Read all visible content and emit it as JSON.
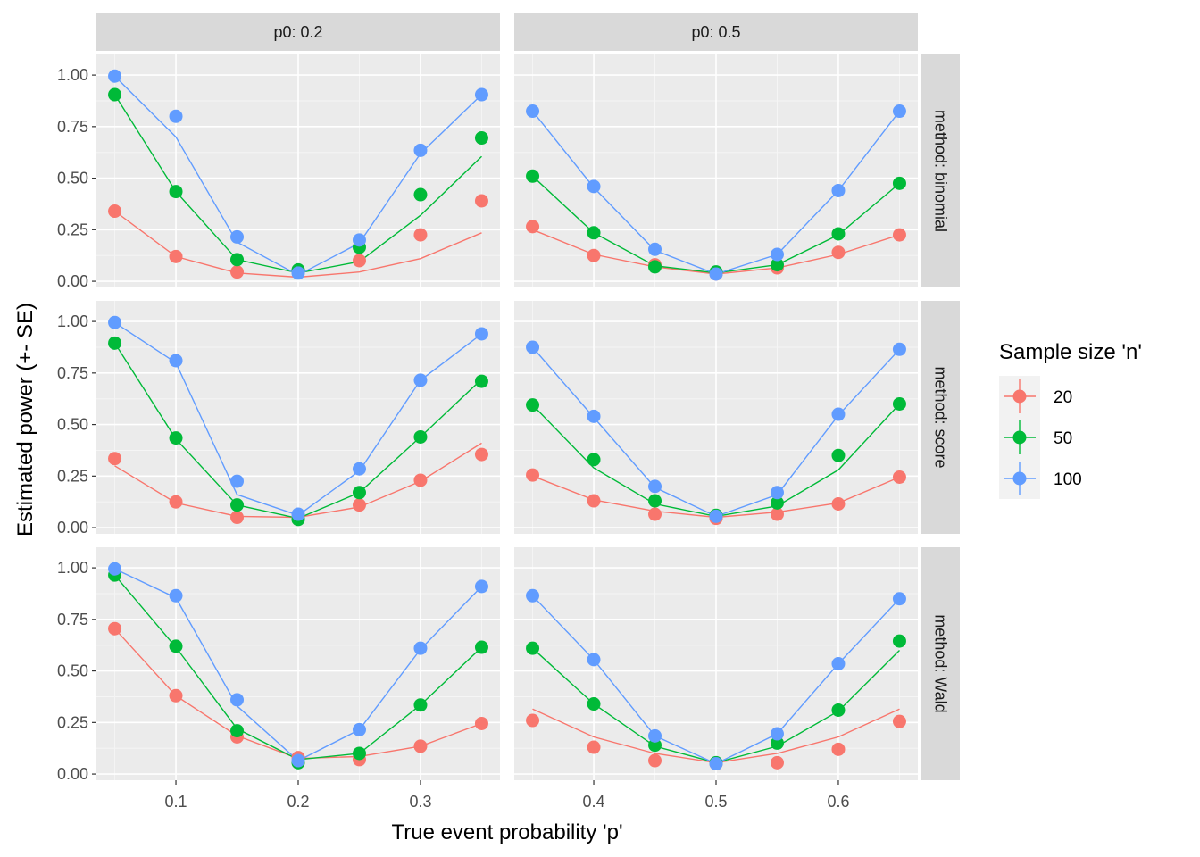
{
  "chart_data": {
    "type": "scatter",
    "xlabel": "True event probability 'p'",
    "ylabel": "Estimated power (+- SE)",
    "ylim": [
      -0.03,
      1.1
    ],
    "y_ticks": [
      0,
      0.25,
      0.5,
      0.75,
      1
    ],
    "y_tick_labels": [
      "0.00",
      "0.25",
      "0.50",
      "0.75",
      "1.00"
    ],
    "grid": true,
    "legend": {
      "title": "Sample size 'n'",
      "placement": "right",
      "entries": [
        {
          "label": "20",
          "color": "#F8766D"
        },
        {
          "label": "50",
          "color": "#00BA38"
        },
        {
          "label": "100",
          "color": "#619CFF"
        }
      ]
    },
    "facet_columns": [
      {
        "label": "p0: 0.2",
        "xlim": [
          0.035,
          0.365
        ],
        "x_ticks": [
          0.1,
          0.2,
          0.3
        ],
        "x_tick_labels": [
          "0.1",
          "0.2",
          "0.3"
        ],
        "x": [
          0.05,
          0.1,
          0.15,
          0.2,
          0.25,
          0.3,
          0.35
        ]
      },
      {
        "label": "p0: 0.5",
        "xlim": [
          0.335,
          0.665
        ],
        "x_ticks": [
          0.4,
          0.5,
          0.6
        ],
        "x_tick_labels": [
          "0.4",
          "0.5",
          "0.6"
        ],
        "x": [
          0.35,
          0.4,
          0.45,
          0.5,
          0.55,
          0.6,
          0.65
        ]
      }
    ],
    "facet_rows": [
      {
        "label": "method: binomial"
      },
      {
        "label": "method: score"
      },
      {
        "label": "method: Wald"
      }
    ],
    "panels": [
      {
        "row": 0,
        "col": 0,
        "series": [
          {
            "name": "20",
            "points": [
              0.34,
              0.12,
              0.045,
              0.05,
              0.1,
              0.225,
              0.39
            ],
            "line": [
              0.34,
              0.12,
              0.04,
              0.02,
              0.045,
              0.11,
              0.235
            ]
          },
          {
            "name": "50",
            "points": [
              0.905,
              0.435,
              0.105,
              0.055,
              0.165,
              0.42,
              0.695
            ],
            "line": [
              0.905,
              0.435,
              0.105,
              0.04,
              0.095,
              0.32,
              0.605
            ]
          },
          {
            "name": "100",
            "points": [
              0.995,
              0.8,
              0.215,
              0.04,
              0.2,
              0.635,
              0.905
            ],
            "line": [
              0.995,
              0.7,
              0.19,
              0.03,
              0.185,
              0.62,
              0.905
            ]
          }
        ]
      },
      {
        "row": 0,
        "col": 1,
        "series": [
          {
            "name": "20",
            "points": [
              0.265,
              0.125,
              0.08,
              0.035,
              0.065,
              0.14,
              0.225
            ],
            "line": [
              0.25,
              0.13,
              0.07,
              0.035,
              0.065,
              0.13,
              0.225
            ]
          },
          {
            "name": "50",
            "points": [
              0.51,
              0.235,
              0.07,
              0.045,
              0.08,
              0.23,
              0.475
            ],
            "line": [
              0.51,
              0.235,
              0.075,
              0.04,
              0.08,
              0.225,
              0.475
            ]
          },
          {
            "name": "100",
            "points": [
              0.825,
              0.46,
              0.155,
              0.035,
              0.13,
              0.44,
              0.825
            ],
            "line": [
              0.825,
              0.455,
              0.15,
              0.035,
              0.13,
              0.44,
              0.825
            ]
          }
        ]
      },
      {
        "row": 1,
        "col": 0,
        "series": [
          {
            "name": "20",
            "points": [
              0.335,
              0.125,
              0.05,
              0.05,
              0.11,
              0.23,
              0.355
            ],
            "line": [
              0.3,
              0.12,
              0.055,
              0.05,
              0.1,
              0.225,
              0.41
            ]
          },
          {
            "name": "50",
            "points": [
              0.895,
              0.435,
              0.11,
              0.04,
              0.17,
              0.44,
              0.71
            ],
            "line": [
              0.895,
              0.43,
              0.11,
              0.045,
              0.17,
              0.44,
              0.72
            ]
          },
          {
            "name": "100",
            "points": [
              0.995,
              0.81,
              0.225,
              0.065,
              0.285,
              0.715,
              0.94
            ],
            "line": [
              0.995,
              0.8,
              0.16,
              0.06,
              0.275,
              0.715,
              0.94
            ]
          }
        ]
      },
      {
        "row": 1,
        "col": 1,
        "series": [
          {
            "name": "20",
            "points": [
              0.255,
              0.13,
              0.065,
              0.045,
              0.065,
              0.115,
              0.245
            ],
            "line": [
              0.25,
              0.135,
              0.08,
              0.05,
              0.075,
              0.12,
              0.245
            ]
          },
          {
            "name": "50",
            "points": [
              0.595,
              0.33,
              0.13,
              0.06,
              0.12,
              0.35,
              0.6
            ],
            "line": [
              0.595,
              0.29,
              0.115,
              0.055,
              0.105,
              0.28,
              0.6
            ]
          },
          {
            "name": "100",
            "points": [
              0.875,
              0.54,
              0.2,
              0.055,
              0.17,
              0.55,
              0.865
            ],
            "line": [
              0.875,
              0.535,
              0.195,
              0.055,
              0.16,
              0.545,
              0.865
            ]
          }
        ]
      },
      {
        "row": 2,
        "col": 0,
        "series": [
          {
            "name": "20",
            "points": [
              0.705,
              0.38,
              0.18,
              0.08,
              0.07,
              0.135,
              0.245
            ],
            "line": [
              0.705,
              0.38,
              0.185,
              0.075,
              0.085,
              0.135,
              0.245
            ]
          },
          {
            "name": "50",
            "points": [
              0.965,
              0.62,
              0.21,
              0.055,
              0.1,
              0.335,
              0.615
            ],
            "line": [
              0.965,
              0.615,
              0.22,
              0.07,
              0.1,
              0.335,
              0.615
            ]
          },
          {
            "name": "100",
            "points": [
              0.995,
              0.865,
              0.36,
              0.065,
              0.215,
              0.61,
              0.91
            ],
            "line": [
              0.995,
              0.855,
              0.33,
              0.065,
              0.215,
              0.605,
              0.91
            ]
          }
        ]
      },
      {
        "row": 2,
        "col": 1,
        "series": [
          {
            "name": "20",
            "points": [
              0.26,
              0.13,
              0.065,
              0.05,
              0.055,
              0.12,
              0.255
            ],
            "line": [
              0.315,
              0.18,
              0.1,
              0.055,
              0.1,
              0.18,
              0.315
            ]
          },
          {
            "name": "50",
            "points": [
              0.61,
              0.34,
              0.14,
              0.055,
              0.15,
              0.31,
              0.645
            ],
            "line": [
              0.61,
              0.34,
              0.135,
              0.055,
              0.135,
              0.305,
              0.6
            ]
          },
          {
            "name": "100",
            "points": [
              0.865,
              0.555,
              0.185,
              0.05,
              0.195,
              0.535,
              0.85
            ],
            "line": [
              0.865,
              0.555,
              0.185,
              0.05,
              0.195,
              0.535,
              0.85
            ]
          }
        ]
      }
    ]
  }
}
